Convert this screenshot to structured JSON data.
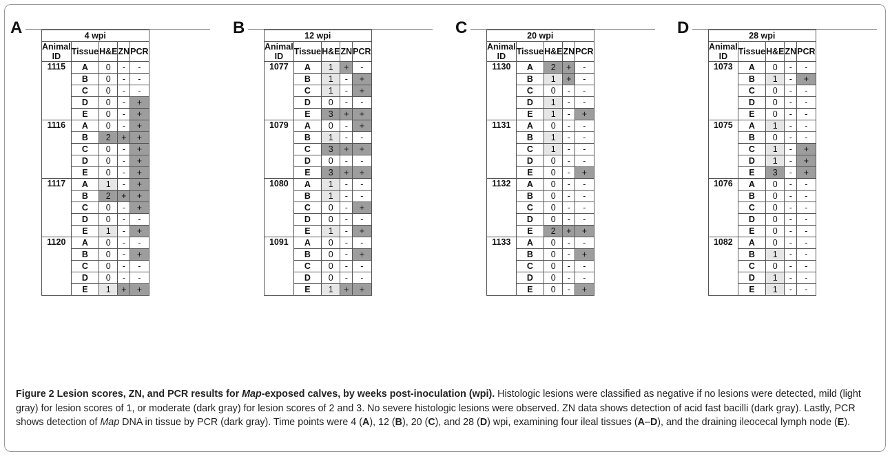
{
  "headers": {
    "animal": "Animal ID",
    "tissue": "Tissue",
    "he": "H&E",
    "zn": "ZN",
    "pcr": "PCR"
  },
  "panels": [
    {
      "letter": "A",
      "title": "4 wpi",
      "animals": [
        {
          "id": "1115",
          "rows": [
            [
              "A",
              "0",
              "-",
              "-"
            ],
            [
              "B",
              "0",
              "-",
              "-"
            ],
            [
              "C",
              "0",
              "-",
              "-"
            ],
            [
              "D",
              "0",
              "-",
              "+"
            ],
            [
              "E",
              "0",
              "-",
              "+"
            ]
          ]
        },
        {
          "id": "1116",
          "rows": [
            [
              "A",
              "0",
              "-",
              "+"
            ],
            [
              "B",
              "2",
              "+",
              "+"
            ],
            [
              "C",
              "0",
              "-",
              "+"
            ],
            [
              "D",
              "0",
              "-",
              "+"
            ],
            [
              "E",
              "0",
              "-",
              "+"
            ]
          ]
        },
        {
          "id": "1117",
          "rows": [
            [
              "A",
              "1",
              "-",
              "+"
            ],
            [
              "B",
              "2",
              "+",
              "+"
            ],
            [
              "C",
              "0",
              "-",
              "+"
            ],
            [
              "D",
              "0",
              "-",
              "-"
            ],
            [
              "E",
              "1",
              "-",
              "+"
            ]
          ]
        },
        {
          "id": "1120",
          "rows": [
            [
              "A",
              "0",
              "-",
              "-"
            ],
            [
              "B",
              "0",
              "-",
              "+"
            ],
            [
              "C",
              "0",
              "-",
              "-"
            ],
            [
              "D",
              "0",
              "-",
              "-"
            ],
            [
              "E",
              "1",
              "+",
              "+"
            ]
          ]
        }
      ]
    },
    {
      "letter": "B",
      "title": "12 wpi",
      "animals": [
        {
          "id": "1077",
          "rows": [
            [
              "A",
              "1",
              "+",
              "-"
            ],
            [
              "B",
              "1",
              "-",
              "+"
            ],
            [
              "C",
              "1",
              "-",
              "+"
            ],
            [
              "D",
              "0",
              "-",
              "-"
            ],
            [
              "E",
              "3",
              "+",
              "+"
            ]
          ]
        },
        {
          "id": "1079",
          "rows": [
            [
              "A",
              "0",
              "-",
              "+"
            ],
            [
              "B",
              "1",
              "-",
              "-"
            ],
            [
              "C",
              "3",
              "+",
              "+"
            ],
            [
              "D",
              "0",
              "-",
              "-"
            ],
            [
              "E",
              "3",
              "+",
              "+"
            ]
          ]
        },
        {
          "id": "1080",
          "rows": [
            [
              "A",
              "1",
              "-",
              "-"
            ],
            [
              "B",
              "1",
              "-",
              "-"
            ],
            [
              "C",
              "0",
              "-",
              "+"
            ],
            [
              "D",
              "0",
              "-",
              "-"
            ],
            [
              "E",
              "1",
              "-",
              "+"
            ]
          ]
        },
        {
          "id": "1091",
          "rows": [
            [
              "A",
              "0",
              "-",
              "-"
            ],
            [
              "B",
              "0",
              "-",
              "+"
            ],
            [
              "C",
              "0",
              "-",
              "-"
            ],
            [
              "D",
              "0",
              "-",
              "-"
            ],
            [
              "E",
              "1",
              "+",
              "+"
            ]
          ]
        }
      ]
    },
    {
      "letter": "C",
      "title": "20 wpi",
      "animals": [
        {
          "id": "1130",
          "rows": [
            [
              "A",
              "2",
              "+",
              "-"
            ],
            [
              "B",
              "1",
              "+",
              "-"
            ],
            [
              "C",
              "0",
              "-",
              "-"
            ],
            [
              "D",
              "1",
              "-",
              "-"
            ],
            [
              "E",
              "1",
              "-",
              "+"
            ]
          ]
        },
        {
          "id": "1131",
          "rows": [
            [
              "A",
              "0",
              "-",
              "-"
            ],
            [
              "B",
              "1",
              "-",
              "-"
            ],
            [
              "C",
              "1",
              "-",
              "-"
            ],
            [
              "D",
              "0",
              "-",
              "-"
            ],
            [
              "E",
              "0",
              "-",
              "+"
            ]
          ]
        },
        {
          "id": "1132",
          "rows": [
            [
              "A",
              "0",
              "-",
              "-"
            ],
            [
              "B",
              "0",
              "-",
              "-"
            ],
            [
              "C",
              "0",
              "-",
              "-"
            ],
            [
              "D",
              "0",
              "-",
              "-"
            ],
            [
              "E",
              "2",
              "+",
              "+"
            ]
          ]
        },
        {
          "id": "1133",
          "rows": [
            [
              "A",
              "0",
              "-",
              "-"
            ],
            [
              "B",
              "0",
              "-",
              "+"
            ],
            [
              "C",
              "0",
              "-",
              "-"
            ],
            [
              "D",
              "0",
              "-",
              "-"
            ],
            [
              "E",
              "0",
              "-",
              "+"
            ]
          ]
        }
      ]
    },
    {
      "letter": "D",
      "title": "28 wpi",
      "animals": [
        {
          "id": "1073",
          "rows": [
            [
              "A",
              "0",
              "-",
              "-"
            ],
            [
              "B",
              "1",
              "-",
              "+"
            ],
            [
              "C",
              "0",
              "-",
              "-"
            ],
            [
              "D",
              "0",
              "-",
              "-"
            ],
            [
              "E",
              "0",
              "-",
              "-"
            ]
          ]
        },
        {
          "id": "1075",
          "rows": [
            [
              "A",
              "1",
              "-",
              "-"
            ],
            [
              "B",
              "0",
              "-",
              "-"
            ],
            [
              "C",
              "1",
              "-",
              "+"
            ],
            [
              "D",
              "1",
              "-",
              "+"
            ],
            [
              "E",
              "3",
              "-",
              "+"
            ]
          ]
        },
        {
          "id": "1076",
          "rows": [
            [
              "A",
              "0",
              "-",
              "-"
            ],
            [
              "B",
              "0",
              "-",
              "-"
            ],
            [
              "C",
              "0",
              "-",
              "-"
            ],
            [
              "D",
              "0",
              "-",
              "-"
            ],
            [
              "E",
              "0",
              "-",
              "-"
            ]
          ]
        },
        {
          "id": "1082",
          "rows": [
            [
              "A",
              "0",
              "-",
              "-"
            ],
            [
              "B",
              "1",
              "-",
              "-"
            ],
            [
              "C",
              "0",
              "-",
              "-"
            ],
            [
              "D",
              "1",
              "-",
              "-"
            ],
            [
              "E",
              "1",
              "-",
              "-"
            ]
          ]
        }
      ]
    }
  ],
  "caption": {
    "title_a": "Figure 2  Lesion scores, ZN, and PCR results for ",
    "title_map": "Map",
    "title_b": "-exposed calves, by weeks post-inoculation (wpi).",
    "s1": " Histologic lesions were classified as negative if no lesions were detected, mild (light gray) for lesion scores of 1, or moderate (dark gray) for lesion scores of 2 and 3. No severe histologic lesions were observed. ZN data shows detection of acid fast bacilli (dark gray). Lastly, PCR shows detection of ",
    "s1_map": "Map",
    "s2": " DNA in tissue by PCR (dark gray). Time points were 4 (",
    "p_a": "A",
    "s3": "), 12 (",
    "p_b": "B",
    "s4": "), 20 (",
    "p_c": "C",
    "s5": "), and 28 (",
    "p_d": "D",
    "s6": ") wpi, examining four ileal tissues (",
    "p_ad": "A",
    "s6b": "–",
    "p_ad2": "D",
    "s7": "), and the draining ileocecal lymph node (",
    "p_e": "E",
    "s8": ")."
  },
  "colors": {
    "mild": "#e6e6e6",
    "moderate": "#9d9d9d"
  }
}
